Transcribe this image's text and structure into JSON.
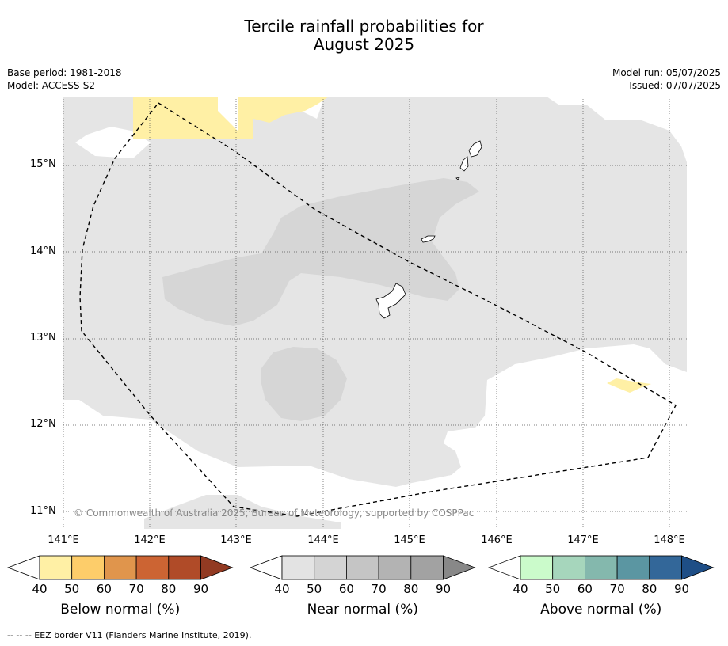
{
  "title_line1": "Tercile rainfall probabilities for",
  "title_line2": "August 2025",
  "meta_left": [
    "Base period: 1981-2018",
    "Model: ACCESS-S2"
  ],
  "meta_right": [
    "Model run: 05/07/2025",
    "Issued: 07/07/2025"
  ],
  "lat_labels": [
    "15°N",
    "14°N",
    "13°N",
    "12°N",
    "11°N"
  ],
  "lon_labels": [
    "141°E",
    "142°E",
    "143°E",
    "144°E",
    "145°E",
    "146°E",
    "147°E",
    "148°E"
  ],
  "copyright": "© Commonwealth of Australia 2025, Bureau of Meteorology, supported by COSPPac",
  "colorbars": [
    {
      "label": "Below normal (%)",
      "ticks": [
        "40",
        "50",
        "60",
        "70",
        "80",
        "90"
      ],
      "colors": [
        "#fff0a5",
        "#fdcd6a",
        "#e0954c",
        "#cc6433",
        "#b04b28",
        "#923a22"
      ]
    },
    {
      "label": "Near normal (%)",
      "ticks": [
        "40",
        "50",
        "60",
        "70",
        "80",
        "90"
      ],
      "colors": [
        "#e3e3e3",
        "#d4d4d4",
        "#c5c5c5",
        "#b3b3b3",
        "#a2a2a2",
        "#888888"
      ]
    },
    {
      "label": "Above normal (%)",
      "ticks": [
        "40",
        "50",
        "60",
        "70",
        "80",
        "90"
      ],
      "colors": [
        "#cbfbcb",
        "#a6d6bc",
        "#84b8ad",
        "#5b96a2",
        "#336799",
        "#1e4e86"
      ]
    }
  ],
  "footer": "--  --  -- EEZ border V11 (Flanders Marine Institute, 2019).",
  "map_colors": {
    "near_light": "#e5e5e5",
    "near_mid": "#d6d6d6",
    "below_light": "#fff0a5"
  }
}
